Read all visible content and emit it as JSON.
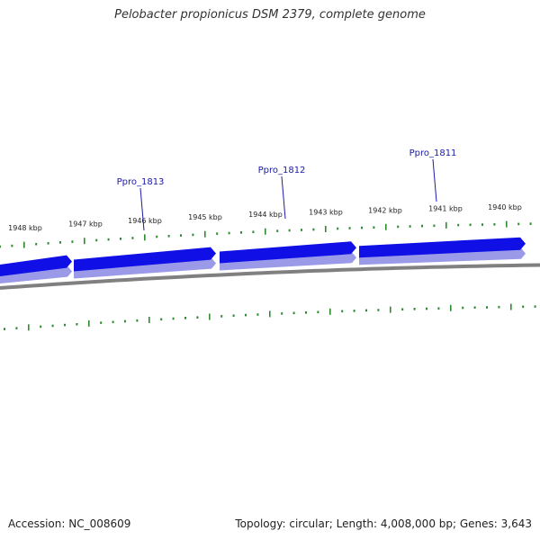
{
  "title": "Pelobacter propionicus DSM 2379, complete genome",
  "footer": {
    "accession": "Accession: NC_008609",
    "summary": "Topology: circular; Length: 4,008,000 bp; Genes: 3,643"
  },
  "colors": {
    "gene_fill": "#1010e6",
    "gene_shadow": "#9a9ae8",
    "backbone": "#808080",
    "tick": "#2e8b2e",
    "gene_label": "#1a1aa8"
  },
  "scale_labels": [
    "1948 kbp",
    "1947 kbp",
    "1946 kbp",
    "1945 kbp",
    "1944 kbp",
    "1943 kbp",
    "1942 kbp",
    "1941 kbp",
    "1940 kbp"
  ],
  "genes": [
    {
      "locus": "Ppro_1813",
      "strand": "-"
    },
    {
      "locus": "Ppro_1812",
      "strand": "-"
    },
    {
      "locus": "Ppro_1811",
      "strand": "-"
    },
    {
      "locus": "",
      "strand": "-"
    }
  ]
}
